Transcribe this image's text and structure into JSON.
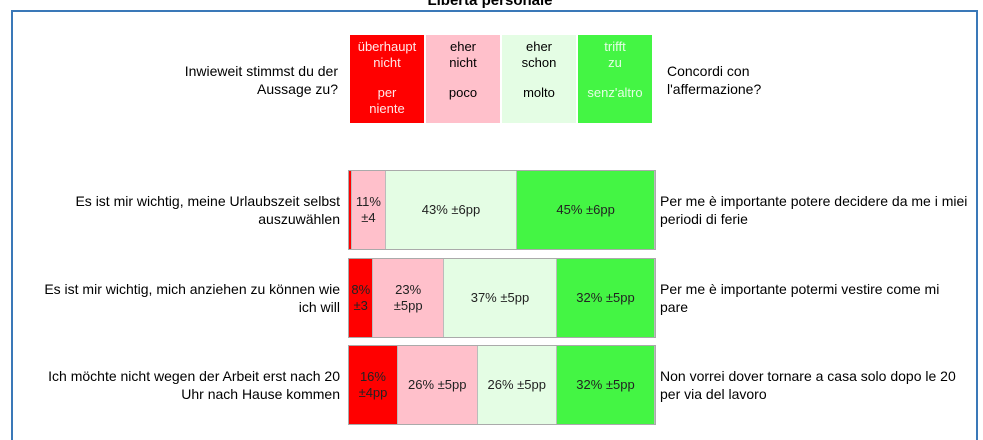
{
  "chart_data": {
    "type": "bar",
    "orientation": "horizontal",
    "stacked": true,
    "title": "Libertà personale",
    "question": "Inwieweit stimmst du der Aussage zu?",
    "question_it": "Concordi con l'affermazione?",
    "categories": [
      "Es ist mir wichtig, meine Urlaubszeit selbst auszuwählen",
      "Es ist mir wichtig, mich anziehen zu können wie ich will",
      "Ich möchte nicht wegen der Arbeit erst nach 20 Uhr nach Hause kommen"
    ],
    "categories_it": [
      "Per me è importante potere decidere da me i miei periodi di ferie",
      "Per me è importante potermi vestire come mi pare",
      "Non vorrei dover tornare a casa solo dopo le 20 per via del lavoro"
    ],
    "series": [
      {
        "name": "überhaupt nicht",
        "name_it": "per niente",
        "color": "#ff0000",
        "text_color": "#ffe8e8",
        "values": [
          1,
          8,
          16
        ],
        "errors": [
          null,
          3,
          4
        ],
        "value_labels": [
          null,
          "8% ±3",
          "16% ±4pp"
        ]
      },
      {
        "name": "eher nicht",
        "name_it": "poco",
        "color": "#ffc0cb",
        "text_color": "#000000",
        "values": [
          11,
          23,
          26
        ],
        "errors": [
          4,
          5,
          5
        ],
        "value_labels": [
          "11% ±4",
          "23% ±5pp",
          "26% ±5pp"
        ]
      },
      {
        "name": "eher schon",
        "name_it": "molto",
        "color": "#e4fde4",
        "text_color": "#000000",
        "values": [
          43,
          37,
          26
        ],
        "errors": [
          6,
          5,
          5
        ],
        "value_labels": [
          "43% ±6pp",
          "37% ±5pp",
          "26% ±5pp"
        ]
      },
      {
        "name": "trifft zu",
        "name_it": "senz'altro",
        "color": "#44f544",
        "text_color": "#e4fde4",
        "values": [
          45,
          32,
          32
        ],
        "errors": [
          6,
          5,
          5
        ],
        "value_labels": [
          "45% ±6pp",
          "32% ±5pp",
          "32% ±5pp"
        ]
      }
    ]
  }
}
